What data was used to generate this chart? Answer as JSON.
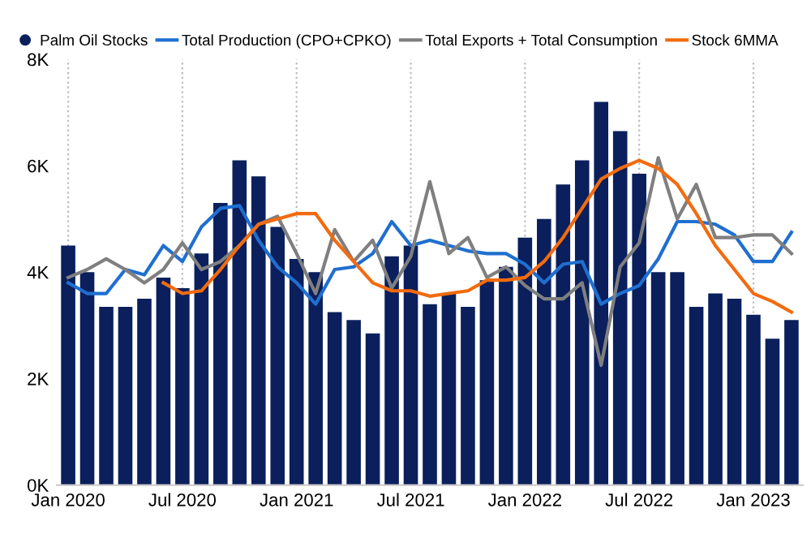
{
  "chart_data": {
    "type": "bar",
    "categories": [
      "Jan 2020",
      null,
      null,
      null,
      null,
      null,
      "Jul 2020",
      null,
      null,
      null,
      null,
      null,
      "Jan 2021",
      null,
      null,
      null,
      null,
      null,
      "Jul 2021",
      null,
      null,
      null,
      null,
      null,
      "Jan 2022",
      null,
      null,
      null,
      null,
      null,
      "Jul 2022",
      null,
      null,
      null,
      null,
      null,
      "Jan 2023",
      null,
      null
    ],
    "series": [
      {
        "name": "Palm Oil Stocks",
        "color": "#0a1f5c",
        "values": [
          4.5,
          4.0,
          3.35,
          3.35,
          3.5,
          3.9,
          3.7,
          4.35,
          5.3,
          6.1,
          5.8,
          4.85,
          4.25,
          4.0,
          3.25,
          3.1,
          2.85,
          4.3,
          4.5,
          3.4,
          3.6,
          3.35,
          3.85,
          4.1,
          4.65,
          5.0,
          5.65,
          6.1,
          7.2,
          6.65,
          5.85,
          4.0,
          4.0,
          3.35,
          3.6,
          3.5,
          3.2,
          2.75,
          3.1
        ]
      },
      {
        "name": "Total Production (CPO+CPKO)",
        "type": "line",
        "color": "#1f6fd0",
        "values": [
          3.8,
          3.6,
          3.6,
          4.05,
          3.95,
          4.5,
          4.2,
          4.85,
          5.2,
          5.25,
          4.6,
          4.1,
          3.8,
          3.4,
          4.05,
          4.1,
          4.35,
          4.95,
          4.5,
          4.6,
          4.5,
          4.4,
          4.35,
          4.35,
          4.15,
          3.8,
          4.15,
          4.2,
          3.4,
          3.6,
          3.75,
          4.25,
          4.95,
          4.95,
          4.9,
          4.7,
          4.2,
          4.2,
          4.75
        ]
      },
      {
        "name": "Total Exports + Total Consumption",
        "type": "line",
        "color": "#7f7f7f",
        "values": [
          3.9,
          4.05,
          4.25,
          4.05,
          3.8,
          4.05,
          4.55,
          4.05,
          4.2,
          4.5,
          4.9,
          5.05,
          4.35,
          3.6,
          4.8,
          4.2,
          4.6,
          3.7,
          4.3,
          5.7,
          4.35,
          4.65,
          3.9,
          4.1,
          3.75,
          3.5,
          3.5,
          3.8,
          2.25,
          4.1,
          4.55,
          6.15,
          5.0,
          5.65,
          4.65,
          4.65,
          4.7,
          4.7,
          4.35
        ]
      },
      {
        "name": "Stock 6MMA",
        "type": "line",
        "color": "#f26b0f",
        "values": [
          null,
          null,
          null,
          null,
          null,
          3.8,
          3.6,
          3.65,
          4.05,
          4.5,
          4.9,
          5.0,
          5.1,
          5.1,
          4.6,
          4.2,
          3.8,
          3.65,
          3.65,
          3.55,
          3.6,
          3.65,
          3.85,
          3.85,
          3.9,
          4.2,
          4.65,
          5.2,
          5.75,
          5.95,
          6.1,
          5.95,
          5.65,
          5.1,
          4.5,
          4.05,
          3.6,
          3.45,
          3.25
        ]
      }
    ],
    "ylim": [
      0,
      8
    ],
    "yticks": [
      {
        "value": 0,
        "label": "0K"
      },
      {
        "value": 2,
        "label": "2K"
      },
      {
        "value": 4,
        "label": "4K"
      },
      {
        "value": 6,
        "label": "6K"
      },
      {
        "value": 8,
        "label": "8K"
      }
    ],
    "grid": "x",
    "legend": "top"
  }
}
